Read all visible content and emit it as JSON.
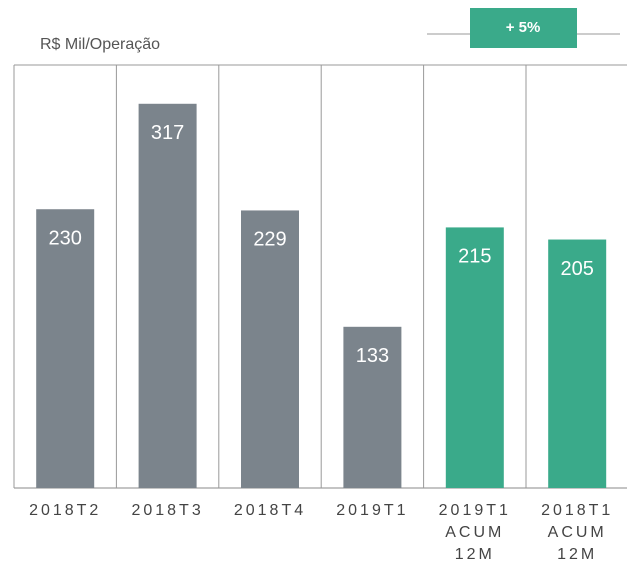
{
  "chart_data": {
    "type": "bar",
    "title": "R$ Mil/Operação",
    "annotation": "+ 5%",
    "categories": [
      "2018T2",
      "2018T3",
      "2018T4",
      "2019T1",
      "2019T1 ACUM 12M",
      "2018T1 ACUM 12M"
    ],
    "values": [
      230,
      317,
      229,
      133,
      215,
      205
    ],
    "colors": [
      "#7b848c",
      "#7b848c",
      "#7b848c",
      "#7b848c",
      "#3aaa8a",
      "#3aaa8a"
    ],
    "annotation_color": "#3aaa8a",
    "ylim": [
      0,
      349
    ]
  }
}
